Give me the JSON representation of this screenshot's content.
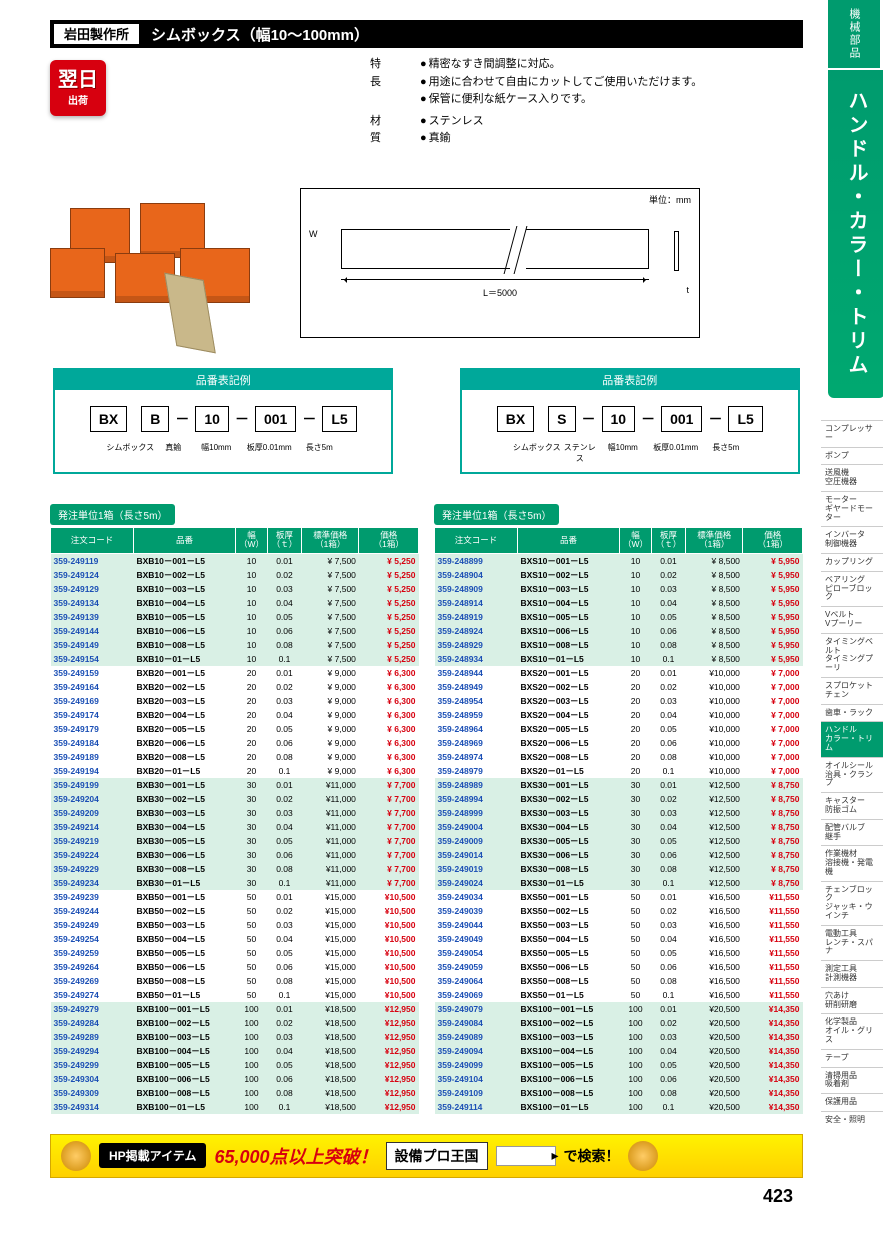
{
  "sideTab": {
    "top": "機械部品",
    "main": "ハンドル・カラー・トリム"
  },
  "sideCats": [
    "コンプレッサー",
    "ポンプ",
    "送風機\n空圧機器",
    "モーター\nギヤードモーター",
    "インバータ\n制御機器",
    "カップリング",
    "ベアリング\nピローブロック",
    "Vベルト\nVプーリー",
    "タイミングベルト\nタイミングプーリ",
    "スプロケット\nチェン",
    "歯車・ラック",
    "ハンドル\nカラー・トリム",
    "オイルシール\n治具・クランプ",
    "キャスター\n防振ゴム",
    "配管バルブ\n継手",
    "作業機材\n溶接機・発電機",
    "チェンブロック\nジャッキ・ウインチ",
    "電動工具\nレンチ・スパナ",
    "測定工具\n計測機器",
    "穴あけ\n研削研磨",
    "化学製品\nオイル・グリス",
    "テープ",
    "清掃用品\n吸着剤",
    "保護用品",
    "安全・照明"
  ],
  "sideCatActive": 11,
  "title": {
    "brand": "岩田製作所",
    "product": "シムボックス（幅10～100mm）"
  },
  "shipBadge": {
    "l1": "翌日",
    "l2": "出荷"
  },
  "specs": {
    "features_label": "特　長",
    "features": [
      "精密なすき間調整に対応。",
      "用途に合わせて自由にカットしてご使用いただけます。",
      "保管に便利な紙ケース入りです。"
    ],
    "material_label": "材　質",
    "materials": [
      "ステンレス",
      "真鍮"
    ]
  },
  "diagram": {
    "unit": "単位：mm",
    "W": "W",
    "L": "L＝5000",
    "t": "t"
  },
  "notation": {
    "header": "品番表記例",
    "left": {
      "cells": [
        "BX",
        "B",
        "10",
        "001",
        "L5"
      ],
      "labels": [
        "シムボックス",
        "真鍮",
        "幅10mm",
        "板厚0.01mm",
        "長さ5m"
      ]
    },
    "right": {
      "cells": [
        "BX",
        "S",
        "10",
        "001",
        "L5"
      ],
      "labels": [
        "シムボックス",
        "ステンレス",
        "幅10mm",
        "板厚0.01mm",
        "長さ5m"
      ]
    }
  },
  "table": {
    "unit": "発注単位1箱（長さ5m）",
    "headers": [
      "注文コード",
      "品番",
      "幅\n（W）",
      "板厚\n（ｔ）",
      "標準価格\n（1箱）",
      "価格\n（1箱）"
    ],
    "stripeStep": 8
  },
  "leftRows": [
    [
      "359-249119",
      "BXB10－001－L5",
      "10",
      "0.01",
      "¥  7,500",
      "¥  5,250"
    ],
    [
      "359-249124",
      "BXB10－002－L5",
      "10",
      "0.02",
      "¥  7,500",
      "¥  5,250"
    ],
    [
      "359-249129",
      "BXB10－003－L5",
      "10",
      "0.03",
      "¥  7,500",
      "¥  5,250"
    ],
    [
      "359-249134",
      "BXB10－004－L5",
      "10",
      "0.04",
      "¥  7,500",
      "¥  5,250"
    ],
    [
      "359-249139",
      "BXB10－005－L5",
      "10",
      "0.05",
      "¥  7,500",
      "¥  5,250"
    ],
    [
      "359-249144",
      "BXB10－006－L5",
      "10",
      "0.06",
      "¥  7,500",
      "¥  5,250"
    ],
    [
      "359-249149",
      "BXB10－008－L5",
      "10",
      "0.08",
      "¥  7,500",
      "¥  5,250"
    ],
    [
      "359-249154",
      "BXB10－01－L5",
      "10",
      "0.1",
      "¥  7,500",
      "¥  5,250"
    ],
    [
      "359-249159",
      "BXB20－001－L5",
      "20",
      "0.01",
      "¥  9,000",
      "¥  6,300"
    ],
    [
      "359-249164",
      "BXB20－002－L5",
      "20",
      "0.02",
      "¥  9,000",
      "¥  6,300"
    ],
    [
      "359-249169",
      "BXB20－003－L5",
      "20",
      "0.03",
      "¥  9,000",
      "¥  6,300"
    ],
    [
      "359-249174",
      "BXB20－004－L5",
      "20",
      "0.04",
      "¥  9,000",
      "¥  6,300"
    ],
    [
      "359-249179",
      "BXB20－005－L5",
      "20",
      "0.05",
      "¥  9,000",
      "¥  6,300"
    ],
    [
      "359-249184",
      "BXB20－006－L5",
      "20",
      "0.06",
      "¥  9,000",
      "¥  6,300"
    ],
    [
      "359-249189",
      "BXB20－008－L5",
      "20",
      "0.08",
      "¥  9,000",
      "¥  6,300"
    ],
    [
      "359-249194",
      "BXB20－01－L5",
      "20",
      "0.1",
      "¥  9,000",
      "¥  6,300"
    ],
    [
      "359-249199",
      "BXB30－001－L5",
      "30",
      "0.01",
      "¥11,000",
      "¥  7,700"
    ],
    [
      "359-249204",
      "BXB30－002－L5",
      "30",
      "0.02",
      "¥11,000",
      "¥  7,700"
    ],
    [
      "359-249209",
      "BXB30－003－L5",
      "30",
      "0.03",
      "¥11,000",
      "¥  7,700"
    ],
    [
      "359-249214",
      "BXB30－004－L5",
      "30",
      "0.04",
      "¥11,000",
      "¥  7,700"
    ],
    [
      "359-249219",
      "BXB30－005－L5",
      "30",
      "0.05",
      "¥11,000",
      "¥  7,700"
    ],
    [
      "359-249224",
      "BXB30－006－L5",
      "30",
      "0.06",
      "¥11,000",
      "¥  7,700"
    ],
    [
      "359-249229",
      "BXB30－008－L5",
      "30",
      "0.08",
      "¥11,000",
      "¥  7,700"
    ],
    [
      "359-249234",
      "BXB30－01－L5",
      "30",
      "0.1",
      "¥11,000",
      "¥  7,700"
    ],
    [
      "359-249239",
      "BXB50－001－L5",
      "50",
      "0.01",
      "¥15,000",
      "¥10,500"
    ],
    [
      "359-249244",
      "BXB50－002－L5",
      "50",
      "0.02",
      "¥15,000",
      "¥10,500"
    ],
    [
      "359-249249",
      "BXB50－003－L5",
      "50",
      "0.03",
      "¥15,000",
      "¥10,500"
    ],
    [
      "359-249254",
      "BXB50－004－L5",
      "50",
      "0.04",
      "¥15,000",
      "¥10,500"
    ],
    [
      "359-249259",
      "BXB50－005－L5",
      "50",
      "0.05",
      "¥15,000",
      "¥10,500"
    ],
    [
      "359-249264",
      "BXB50－006－L5",
      "50",
      "0.06",
      "¥15,000",
      "¥10,500"
    ],
    [
      "359-249269",
      "BXB50－008－L5",
      "50",
      "0.08",
      "¥15,000",
      "¥10,500"
    ],
    [
      "359-249274",
      "BXB50－01－L5",
      "50",
      "0.1",
      "¥15,000",
      "¥10,500"
    ],
    [
      "359-249279",
      "BXB100－001－L5",
      "100",
      "0.01",
      "¥18,500",
      "¥12,950"
    ],
    [
      "359-249284",
      "BXB100－002－L5",
      "100",
      "0.02",
      "¥18,500",
      "¥12,950"
    ],
    [
      "359-249289",
      "BXB100－003－L5",
      "100",
      "0.03",
      "¥18,500",
      "¥12,950"
    ],
    [
      "359-249294",
      "BXB100－004－L5",
      "100",
      "0.04",
      "¥18,500",
      "¥12,950"
    ],
    [
      "359-249299",
      "BXB100－005－L5",
      "100",
      "0.05",
      "¥18,500",
      "¥12,950"
    ],
    [
      "359-249304",
      "BXB100－006－L5",
      "100",
      "0.06",
      "¥18,500",
      "¥12,950"
    ],
    [
      "359-249309",
      "BXB100－008－L5",
      "100",
      "0.08",
      "¥18,500",
      "¥12,950"
    ],
    [
      "359-249314",
      "BXB100－01－L5",
      "100",
      "0.1",
      "¥18,500",
      "¥12,950"
    ]
  ],
  "rightRows": [
    [
      "359-248899",
      "BXS10－001－L5",
      "10",
      "0.01",
      "¥  8,500",
      "¥  5,950"
    ],
    [
      "359-248904",
      "BXS10－002－L5",
      "10",
      "0.02",
      "¥  8,500",
      "¥  5,950"
    ],
    [
      "359-248909",
      "BXS10－003－L5",
      "10",
      "0.03",
      "¥  8,500",
      "¥  5,950"
    ],
    [
      "359-248914",
      "BXS10－004－L5",
      "10",
      "0.04",
      "¥  8,500",
      "¥  5,950"
    ],
    [
      "359-248919",
      "BXS10－005－L5",
      "10",
      "0.05",
      "¥  8,500",
      "¥  5,950"
    ],
    [
      "359-248924",
      "BXS10－006－L5",
      "10",
      "0.06",
      "¥  8,500",
      "¥  5,950"
    ],
    [
      "359-248929",
      "BXS10－008－L5",
      "10",
      "0.08",
      "¥  8,500",
      "¥  5,950"
    ],
    [
      "359-248934",
      "BXS10－01－L5",
      "10",
      "0.1",
      "¥  8,500",
      "¥  5,950"
    ],
    [
      "359-248944",
      "BXS20－001－L5",
      "20",
      "0.01",
      "¥10,000",
      "¥  7,000"
    ],
    [
      "359-248949",
      "BXS20－002－L5",
      "20",
      "0.02",
      "¥10,000",
      "¥  7,000"
    ],
    [
      "359-248954",
      "BXS20－003－L5",
      "20",
      "0.03",
      "¥10,000",
      "¥  7,000"
    ],
    [
      "359-248959",
      "BXS20－004－L5",
      "20",
      "0.04",
      "¥10,000",
      "¥  7,000"
    ],
    [
      "359-248964",
      "BXS20－005－L5",
      "20",
      "0.05",
      "¥10,000",
      "¥  7,000"
    ],
    [
      "359-248969",
      "BXS20－006－L5",
      "20",
      "0.06",
      "¥10,000",
      "¥  7,000"
    ],
    [
      "359-248974",
      "BXS20－008－L5",
      "20",
      "0.08",
      "¥10,000",
      "¥  7,000"
    ],
    [
      "359-248979",
      "BXS20－01－L5",
      "20",
      "0.1",
      "¥10,000",
      "¥  7,000"
    ],
    [
      "359-248989",
      "BXS30－001－L5",
      "30",
      "0.01",
      "¥12,500",
      "¥  8,750"
    ],
    [
      "359-248994",
      "BXS30－002－L5",
      "30",
      "0.02",
      "¥12,500",
      "¥  8,750"
    ],
    [
      "359-248999",
      "BXS30－003－L5",
      "30",
      "0.03",
      "¥12,500",
      "¥  8,750"
    ],
    [
      "359-249004",
      "BXS30－004－L5",
      "30",
      "0.04",
      "¥12,500",
      "¥  8,750"
    ],
    [
      "359-249009",
      "BXS30－005－L5",
      "30",
      "0.05",
      "¥12,500",
      "¥  8,750"
    ],
    [
      "359-249014",
      "BXS30－006－L5",
      "30",
      "0.06",
      "¥12,500",
      "¥  8,750"
    ],
    [
      "359-249019",
      "BXS30－008－L5",
      "30",
      "0.08",
      "¥12,500",
      "¥  8,750"
    ],
    [
      "359-249024",
      "BXS30－01－L5",
      "30",
      "0.1",
      "¥12,500",
      "¥  8,750"
    ],
    [
      "359-249034",
      "BXS50－001－L5",
      "50",
      "0.01",
      "¥16,500",
      "¥11,550"
    ],
    [
      "359-249039",
      "BXS50－002－L5",
      "50",
      "0.02",
      "¥16,500",
      "¥11,550"
    ],
    [
      "359-249044",
      "BXS50－003－L5",
      "50",
      "0.03",
      "¥16,500",
      "¥11,550"
    ],
    [
      "359-249049",
      "BXS50－004－L5",
      "50",
      "0.04",
      "¥16,500",
      "¥11,550"
    ],
    [
      "359-249054",
      "BXS50－005－L5",
      "50",
      "0.05",
      "¥16,500",
      "¥11,550"
    ],
    [
      "359-249059",
      "BXS50－006－L5",
      "50",
      "0.06",
      "¥16,500",
      "¥11,550"
    ],
    [
      "359-249064",
      "BXS50－008－L5",
      "50",
      "0.08",
      "¥16,500",
      "¥11,550"
    ],
    [
      "359-249069",
      "BXS50－01－L5",
      "50",
      "0.1",
      "¥16,500",
      "¥11,550"
    ],
    [
      "359-249079",
      "BXS100－001－L5",
      "100",
      "0.01",
      "¥20,500",
      "¥14,350"
    ],
    [
      "359-249084",
      "BXS100－002－L5",
      "100",
      "0.02",
      "¥20,500",
      "¥14,350"
    ],
    [
      "359-249089",
      "BXS100－003－L5",
      "100",
      "0.03",
      "¥20,500",
      "¥14,350"
    ],
    [
      "359-249094",
      "BXS100－004－L5",
      "100",
      "0.04",
      "¥20,500",
      "¥14,350"
    ],
    [
      "359-249099",
      "BXS100－005－L5",
      "100",
      "0.05",
      "¥20,500",
      "¥14,350"
    ],
    [
      "359-249104",
      "BXS100－006－L5",
      "100",
      "0.06",
      "¥20,500",
      "¥14,350"
    ],
    [
      "359-249109",
      "BXS100－008－L5",
      "100",
      "0.08",
      "¥20,500",
      "¥14,350"
    ],
    [
      "359-249114",
      "BXS100－01－L5",
      "100",
      "0.1",
      "¥20,500",
      "¥14,350"
    ]
  ],
  "footer": {
    "black": "HP掲載アイテム",
    "red": "65,000点以上突破！",
    "site": "設備プロ王国",
    "search": "で検索！"
  },
  "pageNum": "423"
}
